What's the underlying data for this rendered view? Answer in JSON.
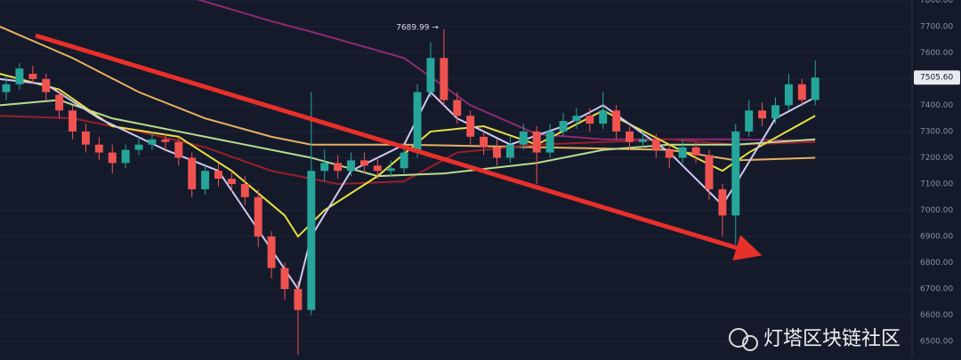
{
  "chart_data": {
    "type": "candlestick",
    "x": [
      0,
      1,
      2,
      3,
      4,
      5,
      6,
      7,
      8,
      9,
      10,
      11,
      12,
      13,
      14,
      15,
      16,
      17,
      18,
      19,
      20,
      21,
      22,
      23,
      24,
      25,
      26,
      27,
      28,
      29,
      30,
      31,
      32,
      33,
      34,
      35,
      36,
      37,
      38,
      39,
      40,
      41,
      42,
      43,
      44,
      45,
      46,
      47,
      48,
      49,
      50,
      51,
      52,
      53,
      54,
      55,
      56,
      57,
      58,
      59,
      60,
      61
    ],
    "open": [
      7450,
      7480,
      7520,
      7500,
      7440,
      7380,
      7300,
      7250,
      7220,
      7180,
      7230,
      7250,
      7270,
      7260,
      7200,
      7080,
      7150,
      7120,
      7100,
      7050,
      6900,
      6780,
      6700,
      6620,
      7150,
      7180,
      7150,
      7190,
      7170,
      7150,
      7160,
      7220,
      7450,
      7580,
      7420,
      7360,
      7280,
      7240,
      7200,
      7250,
      7300,
      7220,
      7300,
      7340,
      7360,
      7330,
      7380,
      7300,
      7260,
      7270,
      7230,
      7200,
      7240,
      7210,
      7080,
      6980,
      7300,
      7380,
      7350,
      7400,
      7480,
      7420
    ],
    "high": [
      7510,
      7560,
      7550,
      7520,
      7460,
      7400,
      7330,
      7280,
      7250,
      7250,
      7280,
      7300,
      7290,
      7280,
      7220,
      7170,
      7180,
      7150,
      7130,
      7080,
      6920,
      6800,
      6730,
      7450,
      7230,
      7210,
      7220,
      7220,
      7200,
      7190,
      7250,
      7480,
      7640,
      7689.99,
      7450,
      7380,
      7300,
      7270,
      7280,
      7330,
      7320,
      7330,
      7370,
      7390,
      7390,
      7450,
      7400,
      7320,
      7300,
      7290,
      7250,
      7270,
      7260,
      7230,
      7100,
      7330,
      7420,
      7410,
      7430,
      7520,
      7500,
      7570
    ],
    "low": [
      7420,
      7460,
      7480,
      7420,
      7350,
      7270,
      7220,
      7190,
      7140,
      7160,
      7210,
      7230,
      7230,
      7170,
      7050,
      7060,
      7090,
      7070,
      7020,
      6860,
      6740,
      6660,
      6450,
      6600,
      7110,
      7120,
      7130,
      7140,
      7120,
      7130,
      7140,
      7200,
      7430,
      7400,
      7330,
      7250,
      7210,
      7170,
      7180,
      7230,
      7100,
      7200,
      7280,
      7310,
      7300,
      7310,
      7270,
      7230,
      7240,
      7200,
      7160,
      7180,
      7180,
      7040,
      6900,
      6870,
      7280,
      7320,
      7330,
      7380,
      7400,
      7400
    ],
    "close": [
      7480,
      7540,
      7500,
      7450,
      7380,
      7300,
      7250,
      7220,
      7180,
      7230,
      7250,
      7270,
      7260,
      7200,
      7080,
      7150,
      7120,
      7100,
      7050,
      6900,
      6780,
      6700,
      6620,
      7150,
      7180,
      7150,
      7190,
      7170,
      7150,
      7160,
      7220,
      7450,
      7580,
      7420,
      7360,
      7280,
      7240,
      7200,
      7250,
      7300,
      7220,
      7300,
      7340,
      7360,
      7330,
      7380,
      7300,
      7260,
      7270,
      7230,
      7200,
      7240,
      7210,
      7080,
      6980,
      7300,
      7380,
      7350,
      7400,
      7480,
      7420,
      7505.6
    ],
    "up_color": "#26a69a",
    "down_color": "#ef5350",
    "lines": [
      {
        "color": "#e8b060",
        "x": [
          -0.5,
          5,
          10,
          15,
          20,
          23,
          30,
          40,
          50,
          55,
          61
        ],
        "values": [
          7700,
          7580,
          7450,
          7350,
          7280,
          7250,
          7250,
          7240,
          7230,
          7190,
          7200
        ]
      },
      {
        "color": "#8e2b72",
        "x": [
          14,
          20,
          23,
          30,
          35,
          40,
          45,
          50,
          55,
          61
        ],
        "values": [
          7810,
          7720,
          7680,
          7580,
          7400,
          7290,
          7270,
          7270,
          7270,
          7265
        ]
      },
      {
        "color": "#9a1f2a",
        "x": [
          -0.5,
          5,
          10,
          15,
          20,
          25,
          30,
          34,
          40,
          50,
          55,
          61
        ],
        "values": [
          7360,
          7350,
          7300,
          7240,
          7150,
          7100,
          7110,
          7220,
          7250,
          7270,
          7250,
          7260
        ]
      },
      {
        "color": "#b8dd90",
        "x": [
          -0.5,
          4,
          8,
          13,
          18,
          23,
          28,
          33,
          40,
          45,
          50,
          55,
          61
        ],
        "values": [
          7400,
          7420,
          7350,
          7300,
          7250,
          7200,
          7130,
          7140,
          7180,
          7230,
          7250,
          7250,
          7270
        ]
      },
      {
        "color": "#e8e040",
        "x": [
          -0.5,
          4,
          8,
          13,
          17,
          21,
          22,
          24,
          28,
          32,
          36,
          40,
          45,
          50,
          54,
          56,
          61
        ],
        "values": [
          7520,
          7460,
          7320,
          7280,
          7150,
          6980,
          6900,
          7000,
          7130,
          7300,
          7320,
          7250,
          7380,
          7250,
          7150,
          7220,
          7360
        ]
      },
      {
        "color": "#d0c8f0",
        "x": [
          -0.5,
          3,
          7,
          12,
          16,
          20,
          22,
          23,
          26,
          30,
          32,
          34,
          38,
          42,
          45,
          50,
          54,
          55,
          58,
          61
        ],
        "values": [
          7500,
          7480,
          7350,
          7230,
          7150,
          6850,
          6700,
          6900,
          7150,
          7250,
          7450,
          7350,
          7250,
          7320,
          7400,
          7220,
          7020,
          7100,
          7350,
          7430
        ]
      }
    ],
    "xlim": [
      -0.47,
      68.3
    ],
    "ylim": [
      6443,
      7801
    ],
    "yticks": [
      {
        "value": 6500,
        "label": "6500.00"
      },
      {
        "value": 6600,
        "label": "6600.00"
      },
      {
        "value": 6700,
        "label": "6700.00"
      },
      {
        "value": 6800,
        "label": "6800.00"
      },
      {
        "value": 6900,
        "label": "6900.00"
      },
      {
        "value": 7000,
        "label": "7000.00"
      },
      {
        "value": 7100,
        "label": "7100.00"
      },
      {
        "value": 7200,
        "label": "7200.00"
      },
      {
        "value": 7300,
        "label": "7300.00"
      },
      {
        "value": 7400,
        "label": "7400.00"
      },
      {
        "value": 7500,
        "label": "7500.00"
      },
      {
        "value": 7600,
        "label": "7600.00"
      },
      {
        "value": 7700,
        "label": "7700.00"
      },
      {
        "value": 7800,
        "label": "7800.00"
      }
    ],
    "high_annotation": "7689.99 →",
    "price_tag": "7505.60",
    "watermark": "灯塔区块链社区"
  }
}
